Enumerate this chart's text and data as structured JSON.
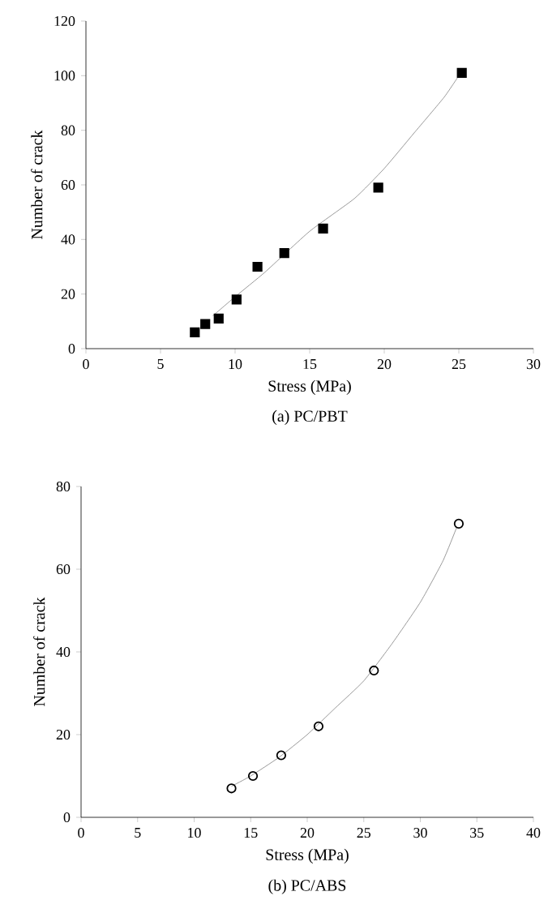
{
  "chart_data": [
    {
      "type": "scatter",
      "title": "(a)  PC/PBT",
      "xlabel": "Stress (MPa)",
      "ylabel": "Number of crack",
      "xlim": [
        0,
        30
      ],
      "ylim": [
        0,
        120
      ],
      "xticks": [
        0,
        5,
        10,
        15,
        20,
        25,
        30
      ],
      "yticks": [
        0,
        20,
        40,
        60,
        80,
        100,
        120
      ],
      "series": [
        {
          "marker": "square",
          "color": "#000000",
          "x": [
            7.3,
            8.0,
            8.9,
            10.1,
            11.5,
            13.3,
            15.9,
            19.6,
            25.2
          ],
          "values": [
            6,
            9,
            11,
            18,
            30,
            35,
            44,
            59,
            101
          ]
        },
        {
          "type": "line",
          "color": "#808080",
          "x": [
            8.5,
            10,
            12,
            15,
            18,
            20,
            22,
            24,
            25
          ],
          "values": [
            12,
            19,
            28,
            43,
            55,
            66,
            79,
            92,
            100
          ]
        }
      ]
    },
    {
      "type": "scatter",
      "title": "(b)  PC/ABS",
      "xlabel": "Stress (MPa)",
      "ylabel": "Number of crack",
      "xlim": [
        0,
        40
      ],
      "ylim": [
        0,
        80
      ],
      "xticks": [
        0,
        5,
        10,
        15,
        20,
        25,
        30,
        35,
        40
      ],
      "yticks": [
        0,
        20,
        40,
        60,
        80
      ],
      "series": [
        {
          "marker": "circle",
          "color": "#000000",
          "x": [
            13.3,
            15.2,
            17.7,
            21.0,
            25.9,
            33.4
          ],
          "values": [
            7,
            10,
            15,
            22,
            35.5,
            71
          ]
        },
        {
          "type": "line",
          "color": "#808080",
          "x": [
            13.3,
            15,
            17.5,
            20,
            22.5,
            25,
            27.5,
            30,
            32,
            33.2
          ],
          "values": [
            7.5,
            10,
            14.5,
            20,
            26.5,
            33,
            42,
            52,
            62,
            70
          ]
        }
      ]
    }
  ]
}
